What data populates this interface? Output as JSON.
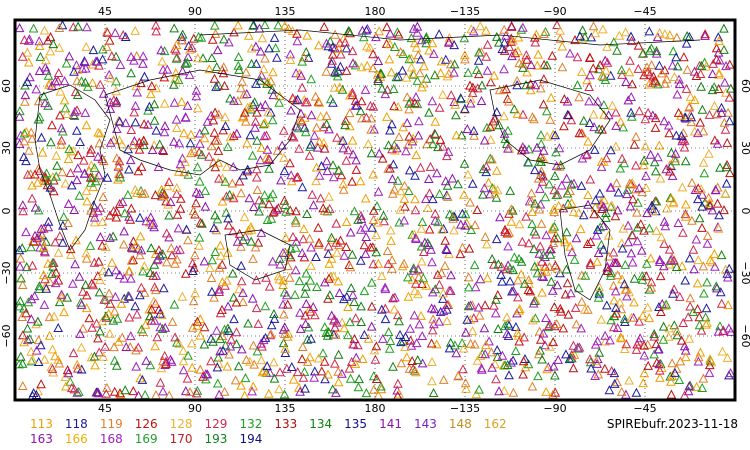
{
  "axes": {
    "lon_ticks": [
      "45",
      "90",
      "135",
      "180",
      "−135",
      "−90",
      "−45"
    ],
    "lat_ticks": [
      "60",
      "30",
      "0",
      "−30",
      "−60"
    ]
  },
  "legend": {
    "row1": [
      {
        "label": "113",
        "color": "#f0a000"
      },
      {
        "label": "118",
        "color": "#1a1aa0"
      },
      {
        "label": "119",
        "color": "#e0802a"
      },
      {
        "label": "126",
        "color": "#c01010"
      },
      {
        "label": "128",
        "color": "#f0b030"
      },
      {
        "label": "129",
        "color": "#d02850"
      },
      {
        "label": "132",
        "color": "#20a020"
      },
      {
        "label": "133",
        "color": "#b01010"
      },
      {
        "label": "134",
        "color": "#108010"
      },
      {
        "label": "135",
        "color": "#101090"
      },
      {
        "label": "141",
        "color": "#9010b0"
      },
      {
        "label": "143",
        "color": "#8020c0"
      },
      {
        "label": "148",
        "color": "#c09020"
      },
      {
        "label": "162",
        "color": "#e0a020"
      }
    ],
    "row2": [
      {
        "label": "163",
        "color": "#9010b0"
      },
      {
        "label": "166",
        "color": "#f0b000"
      },
      {
        "label": "168",
        "color": "#a020c0"
      },
      {
        "label": "169",
        "color": "#20a030"
      },
      {
        "label": "170",
        "color": "#c02020"
      },
      {
        "label": "193",
        "color": "#108020"
      },
      {
        "label": "194",
        "color": "#101080"
      }
    ]
  },
  "source_label": "SPIREbufr.2023-11-18",
  "colors": {
    "marker_palette": [
      "#f0a000",
      "#1a1aa0",
      "#e0802a",
      "#c01010",
      "#20a020",
      "#9010b0",
      "#108010",
      "#d02850",
      "#a020c0",
      "#f0b030"
    ],
    "coastline": "#000000",
    "frame": "#000000"
  }
}
